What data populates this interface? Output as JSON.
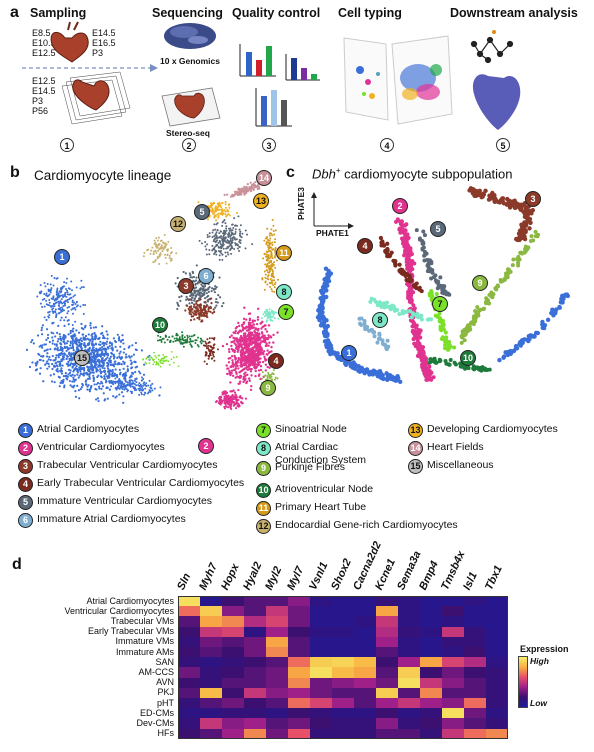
{
  "panel_labels": {
    "a": "a",
    "b": "b",
    "c": "c",
    "d": "d"
  },
  "pipeline": {
    "steps": [
      "Sampling",
      "Sequencing",
      "Quality control",
      "Cell typing",
      "Downstream analysis"
    ],
    "step_numbers": [
      "1",
      "2",
      "3",
      "4",
      "5"
    ],
    "sampling_top_left": [
      "E8.5",
      "E10.5",
      "E12.5"
    ],
    "sampling_top_right": [
      "E14.5",
      "E16.5",
      "P3"
    ],
    "sampling_bottom": [
      "E12.5",
      "E14.5",
      "P3",
      "P56"
    ],
    "tech_1": "10 x Genomics",
    "tech_2": "Stereo-seq"
  },
  "panel_b": {
    "title": "Cardiomyocyte lineage"
  },
  "panel_c": {
    "title_gene": "Dbh",
    "title_sup": "+",
    "title_rest": " cardiomyocyte subpopulation",
    "axis_y": "PHATE3",
    "axis_x": "PHATE1"
  },
  "legend": [
    {
      "n": "1",
      "label": "Atrial Cardiomyocytes",
      "color": "#3a6fd8"
    },
    {
      "n": "2",
      "label": "Ventricular Cardiomyocytes",
      "color": "#e0338f"
    },
    {
      "n": "3",
      "label": "Trabecular Ventricular Cardiomyocytes",
      "color": "#8b3a2a"
    },
    {
      "n": "4",
      "label": "Early Trabecular Ventricular Cardiomyocytes",
      "color": "#7a2a1e"
    },
    {
      "n": "5",
      "label": "Immature Ventricular Cardiomyocytes",
      "color": "#5a6878"
    },
    {
      "n": "6",
      "label": "Immature Atrial Cardiomyocytes",
      "color": "#7faed0"
    },
    {
      "n": "7",
      "label": "Sinoatrial Node",
      "color": "#7be02a"
    },
    {
      "n": "8",
      "label": "Atrial Cardiac\nConduction System",
      "color": "#7de8c8"
    },
    {
      "n": "9",
      "label": "Purkinje Fibres",
      "color": "#8ab840"
    },
    {
      "n": "10",
      "label": "Atrioventricular Node",
      "color": "#1e7a3a"
    },
    {
      "n": "11",
      "label": "Primary Heart Tube",
      "color": "#d49a1a"
    },
    {
      "n": "12",
      "label": "Endocardial Gene-rich Cardiomyocytes",
      "color": "#c8b070"
    },
    {
      "n": "13",
      "label": "Developing Cardiomyocytes",
      "color": "#f0b020"
    },
    {
      "n": "14",
      "label": "Heart Fields",
      "color": "#c89098"
    },
    {
      "n": "15",
      "label": "Miscellaneous",
      "color": "#bdbdbd"
    }
  ],
  "chart_data": {
    "type": "heatmap",
    "columns": [
      "Sln",
      "Myh7",
      "Hopx",
      "Hyal2",
      "Myl2",
      "Myl7",
      "Vsnl1",
      "Shox2",
      "Cacna2d2",
      "Kcne1",
      "Sema3a",
      "Bmp4",
      "Tmsb4x",
      "Isl1",
      "Tbx1"
    ],
    "rows": [
      "Atrial Cardiomyocytes",
      "Ventricular Cardiomyocytes",
      "Trabecular VMs",
      "Early Trabecular VMs",
      "Immature VMs",
      "Immature AMs",
      "SAN",
      "AM-CCS",
      "AVN",
      "PKJ",
      "pHT",
      "ED-CMs",
      "Dev-CMs",
      "HFs"
    ],
    "values": [
      [
        0.95,
        0.1,
        0.25,
        0.3,
        0.3,
        0.4,
        0.15,
        0.1,
        0.1,
        0.2,
        0.15,
        0.1,
        0.1,
        0.15,
        0.1
      ],
      [
        0.7,
        0.9,
        0.4,
        0.3,
        0.55,
        0.35,
        0.1,
        0.1,
        0.1,
        0.8,
        0.15,
        0.1,
        0.25,
        0.1,
        0.1
      ],
      [
        0.3,
        0.8,
        0.75,
        0.5,
        0.6,
        0.35,
        0.1,
        0.1,
        0.15,
        0.55,
        0.15,
        0.1,
        0.15,
        0.1,
        0.1
      ],
      [
        0.25,
        0.55,
        0.6,
        0.15,
        0.45,
        0.25,
        0.15,
        0.15,
        0.1,
        0.5,
        0.2,
        0.15,
        0.55,
        0.2,
        0.1
      ],
      [
        0.2,
        0.35,
        0.3,
        0.35,
        0.8,
        0.3,
        0.1,
        0.1,
        0.1,
        0.45,
        0.15,
        0.1,
        0.2,
        0.2,
        0.1
      ],
      [
        0.25,
        0.3,
        0.25,
        0.35,
        0.75,
        0.3,
        0.1,
        0.1,
        0.1,
        0.3,
        0.15,
        0.1,
        0.15,
        0.25,
        0.1
      ],
      [
        0.2,
        0.15,
        0.2,
        0.25,
        0.3,
        0.7,
        0.9,
        0.92,
        0.85,
        0.25,
        0.45,
        0.8,
        0.6,
        0.5,
        0.15
      ],
      [
        0.35,
        0.2,
        0.25,
        0.3,
        0.35,
        0.8,
        0.95,
        0.85,
        0.8,
        0.3,
        0.9,
        0.25,
        0.35,
        0.25,
        0.2
      ],
      [
        0.25,
        0.2,
        0.3,
        0.3,
        0.35,
        0.75,
        0.35,
        0.4,
        0.45,
        0.35,
        0.95,
        0.55,
        0.4,
        0.3,
        0.2
      ],
      [
        0.3,
        0.85,
        0.25,
        0.55,
        0.4,
        0.45,
        0.35,
        0.3,
        0.3,
        0.9,
        0.3,
        0.75,
        0.3,
        0.3,
        0.2
      ],
      [
        0.2,
        0.3,
        0.35,
        0.25,
        0.3,
        0.7,
        0.6,
        0.45,
        0.3,
        0.45,
        0.55,
        0.45,
        0.4,
        0.7,
        0.2
      ],
      [
        0.15,
        0.15,
        0.2,
        0.2,
        0.15,
        0.25,
        0.2,
        0.15,
        0.15,
        0.25,
        0.15,
        0.2,
        0.95,
        0.35,
        0.15
      ],
      [
        0.2,
        0.55,
        0.4,
        0.45,
        0.3,
        0.35,
        0.25,
        0.2,
        0.2,
        0.4,
        0.2,
        0.25,
        0.4,
        0.3,
        0.2
      ],
      [
        0.25,
        0.3,
        0.45,
        0.75,
        0.35,
        0.65,
        0.2,
        0.2,
        0.2,
        0.3,
        0.3,
        0.2,
        0.55,
        0.7,
        0.75
      ]
    ],
    "colorbar": {
      "title": "Expression",
      "high": "High",
      "low": "Low"
    }
  }
}
